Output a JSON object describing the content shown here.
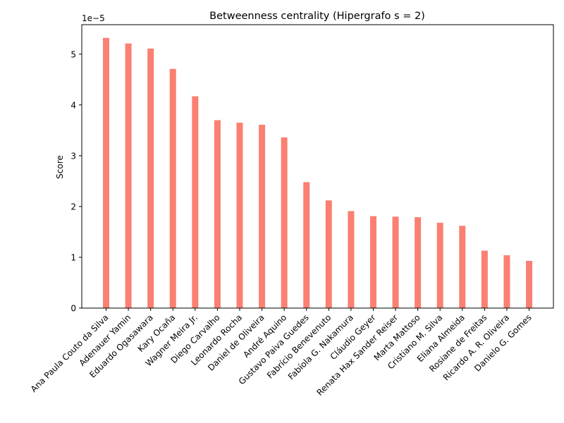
{
  "chart_data": {
    "type": "bar",
    "title": "Betweenness centrality (Hipergrafo s = 2)",
    "xlabel": "",
    "ylabel": "Score",
    "offset_text": "1e−5",
    "scale": 1e-05,
    "ylim": [
      0,
      5.58
    ],
    "yticks": [
      "0",
      "1",
      "2",
      "3",
      "4",
      "5"
    ],
    "grid": false,
    "bar_color": "#fa8072",
    "categories": [
      "Ana Paula Couto da Silva",
      "Adenauer Yamin",
      "Eduardo Ogasawara",
      "Kary Ocaña",
      "Wagner Meira Jr.",
      "Diego Carvalho",
      "Leonardo Rocha",
      "Daniel de Oliveira",
      "André Aquino",
      "Gustavo Paiva Guedes",
      "Fabrício Benevenuto",
      "Fabíola G. Nakamura",
      "Cláudio Geyer",
      "Renata Hax Sander Reiser",
      "Marta Mattoso",
      "Cristiano M. Silva",
      "Eliana Almeida",
      "Rosiane de Freitas",
      "Ricardo A. R. Oliveira",
      "Danielo G. Gomes"
    ],
    "values": [
      5.32,
      5.21,
      5.11,
      4.71,
      4.17,
      3.7,
      3.65,
      3.61,
      3.36,
      2.48,
      2.12,
      1.91,
      1.81,
      1.8,
      1.79,
      1.68,
      1.62,
      1.13,
      1.04,
      0.93
    ]
  }
}
